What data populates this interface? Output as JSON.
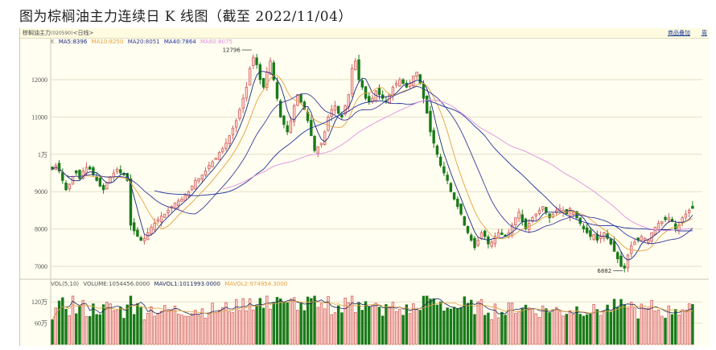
{
  "page": {
    "title": "图为棕榈油主力连续日 K 线图（截至 2022/11/04）"
  },
  "header": {
    "symbol_name": "棕榈油主力",
    "symbol_code": "(020590)",
    "period": "<日线>",
    "links": [
      {
        "label": "商品叠加"
      },
      {
        "label": "周"
      }
    ]
  },
  "legend": {
    "k_label": "K",
    "items": [
      {
        "text": "MA5:8396",
        "color": "#1a2a80"
      },
      {
        "text": "MA10:8250",
        "color": "#e8a040"
      },
      {
        "text": "MA20:8051",
        "color": "#3a3a9a"
      },
      {
        "text": "MA40:7864",
        "color": "#2030a0"
      },
      {
        "text": "MA60:8075",
        "color": "#e090e0"
      }
    ]
  },
  "vol_legend": {
    "items": [
      {
        "text": "VOL(5,10)",
        "color": "#555555"
      },
      {
        "text": "VOLUME:1054456.0000",
        "color": "#555555"
      },
      {
        "text": "MAVOL1:1011993.0000",
        "color": "#1a2a60"
      },
      {
        "text": "MAVOL2:974954.3000",
        "color": "#e8a040"
      }
    ]
  },
  "colors": {
    "up": "#d06060",
    "up_fill": "#ffd8d0",
    "down": "#1a7a1a",
    "grid": "#e2dfc8",
    "background": "#fffef0"
  },
  "chart_data": [
    {
      "type": "candlestick",
      "title": "棕榈油主力连续日K线图（截至2022/11/04）",
      "ylabel": "",
      "ylim": [
        6700,
        13100
      ],
      "yticks": [
        {
          "value": 12000,
          "label": "12000"
        },
        {
          "value": 11000,
          "label": "11000"
        },
        {
          "value": 10000,
          "label": "1万"
        },
        {
          "value": 9000,
          "label": "9000"
        },
        {
          "value": 8000,
          "label": "8000"
        },
        {
          "value": 7000,
          "label": "7000"
        }
      ],
      "annotations": [
        {
          "label": "12796",
          "value": 12796,
          "note": "period high"
        },
        {
          "label": "6882",
          "value": 6882,
          "note": "period low"
        }
      ],
      "ma_latest": {
        "MA5": 8396,
        "MA10": 8250,
        "MA20": 8051,
        "MA40": 7864,
        "MA60": 8075
      },
      "close_path": [
        9600,
        9700,
        9550,
        9300,
        9050,
        9200,
        9400,
        9500,
        9350,
        9550,
        9650,
        9600,
        9450,
        9300,
        9150,
        9050,
        9250,
        9400,
        9500,
        9600,
        9500,
        9450,
        9300,
        8100,
        7950,
        7800,
        7700,
        7750,
        7900,
        8050,
        8150,
        8250,
        8350,
        8400,
        8500,
        8600,
        8700,
        8750,
        8800,
        8900,
        9000,
        9150,
        9300,
        9350,
        9450,
        9550,
        9700,
        9800,
        9900,
        10050,
        10150,
        10300,
        10500,
        10700,
        10900,
        11200,
        11500,
        11800,
        12300,
        12600,
        12400,
        12000,
        11800,
        12200,
        12500,
        12000,
        11500,
        11000,
        10800,
        10600,
        10900,
        11300,
        11600,
        11400,
        11200,
        10900,
        10500,
        10100,
        10200,
        10300,
        10600,
        11000,
        11200,
        11300,
        11100,
        11000,
        11300,
        11600,
        12300,
        12500,
        12000,
        11800,
        11500,
        11400,
        11500,
        11700,
        11600,
        11500,
        11400,
        11600,
        11800,
        11900,
        12000,
        11900,
        11800,
        11900,
        12100,
        12200,
        11900,
        11500,
        11100,
        10600,
        10300,
        10000,
        9700,
        9500,
        9300,
        9000,
        8800,
        8600,
        8400,
        8100,
        7900,
        7700,
        7500,
        7700,
        7900,
        7800,
        7600,
        7650,
        7800,
        7900,
        7850,
        7800,
        7900,
        8100,
        8300,
        8450,
        8200,
        8000,
        8150,
        8300,
        8400,
        8500,
        8600,
        8450,
        8300,
        8400,
        8500,
        8550,
        8500,
        8400,
        8550,
        8450,
        8300,
        8150,
        8000,
        7900,
        7800,
        7850,
        7700,
        7800,
        7900,
        7750,
        7600,
        7400,
        7200,
        7000,
        6950,
        7300,
        7550,
        7650,
        7700,
        7800,
        7750,
        7700,
        7900,
        8050,
        8150,
        8200,
        8250,
        8300,
        8200,
        8000,
        8100,
        8300,
        8400,
        8500,
        8550
      ]
    },
    {
      "type": "bar",
      "title": "VOL(5,10)",
      "ylabel": "",
      "yticks": [
        {
          "value": 1200000,
          "label": "120万"
        },
        {
          "value": 600000,
          "label": "60万"
        }
      ],
      "latest": {
        "VOLUME": 1054456.0,
        "MAVOL1": 1011993.0,
        "MAVOL2": 974954.3
      }
    }
  ]
}
